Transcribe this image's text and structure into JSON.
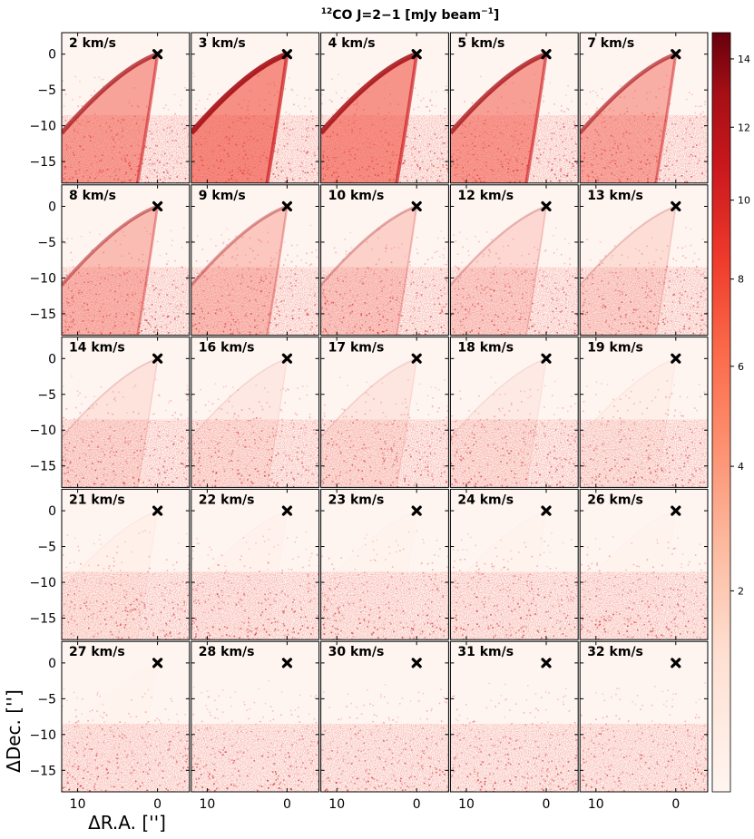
{
  "figure": {
    "title_prefix_sup": "12",
    "title_main": "CO J=2−1 [mJy beam",
    "title_unit_sup": "−1",
    "title_close": "]",
    "xlabel": "ΔR.A. ['']",
    "ylabel": "ΔDec. ['']"
  },
  "chart_data": {
    "type": "heatmap",
    "description_colormap": "Reds",
    "colors": {
      "low": "#fff5f0",
      "mid": "#fb6a4a",
      "high": "#67000d",
      "marker": "#000000"
    },
    "panels": [
      {
        "label": "2 km/s",
        "v": 2,
        "emission": 0.8
      },
      {
        "label": "3 km/s",
        "v": 3,
        "emission": 1.0
      },
      {
        "label": "4 km/s",
        "v": 4,
        "emission": 0.95
      },
      {
        "label": "5 km/s",
        "v": 5,
        "emission": 0.85
      },
      {
        "label": "7 km/s",
        "v": 7,
        "emission": 0.7
      },
      {
        "label": "8 km/s",
        "v": 8,
        "emission": 0.55
      },
      {
        "label": "9 km/s",
        "v": 9,
        "emission": 0.45
      },
      {
        "label": "10 km/s",
        "v": 10,
        "emission": 0.35
      },
      {
        "label": "12 km/s",
        "v": 12,
        "emission": 0.28
      },
      {
        "label": "13 km/s",
        "v": 13,
        "emission": 0.22
      },
      {
        "label": "14 km/s",
        "v": 14,
        "emission": 0.18
      },
      {
        "label": "16 km/s",
        "v": 16,
        "emission": 0.12
      },
      {
        "label": "17 km/s",
        "v": 17,
        "emission": 0.14
      },
      {
        "label": "18 km/s",
        "v": 18,
        "emission": 0.1
      },
      {
        "label": "19 km/s",
        "v": 19,
        "emission": 0.06
      },
      {
        "label": "21 km/s",
        "v": 21,
        "emission": 0.05
      },
      {
        "label": "22 km/s",
        "v": 22,
        "emission": 0.03
      },
      {
        "label": "23 km/s",
        "v": 23,
        "emission": 0.02
      },
      {
        "label": "24 km/s",
        "v": 24,
        "emission": 0.02
      },
      {
        "label": "26 km/s",
        "v": 26,
        "emission": 0.02
      },
      {
        "label": "27 km/s",
        "v": 27,
        "emission": 0.01
      },
      {
        "label": "28 km/s",
        "v": 28,
        "emission": 0.0
      },
      {
        "label": "30 km/s",
        "v": 30,
        "emission": 0.0
      },
      {
        "label": "31 km/s",
        "v": 31,
        "emission": 0.0
      },
      {
        "label": "32 km/s",
        "v": 32,
        "emission": 0.0
      }
    ],
    "grid_rows": 5,
    "grid_cols": 5,
    "xlim": [
      12,
      -4
    ],
    "ylim": [
      -18,
      3
    ],
    "xticks": [
      10,
      0
    ],
    "xtick_labels": [
      "10",
      "0"
    ],
    "yticks": [
      0,
      -5,
      -10,
      -15
    ],
    "ytick_labels": [
      "0",
      "−5",
      "−10",
      "−15"
    ],
    "source_marker": {
      "x": 0,
      "y": 0,
      "symbol": "X"
    },
    "colorbar": {
      "ticks": [
        14,
        12,
        10,
        8,
        6,
        4,
        2
      ],
      "tick_labels": [
        "14",
        "12",
        "10",
        "8",
        "6",
        "4",
        "2"
      ],
      "range": [
        0.3,
        14.8
      ],
      "scale": "power"
    }
  }
}
